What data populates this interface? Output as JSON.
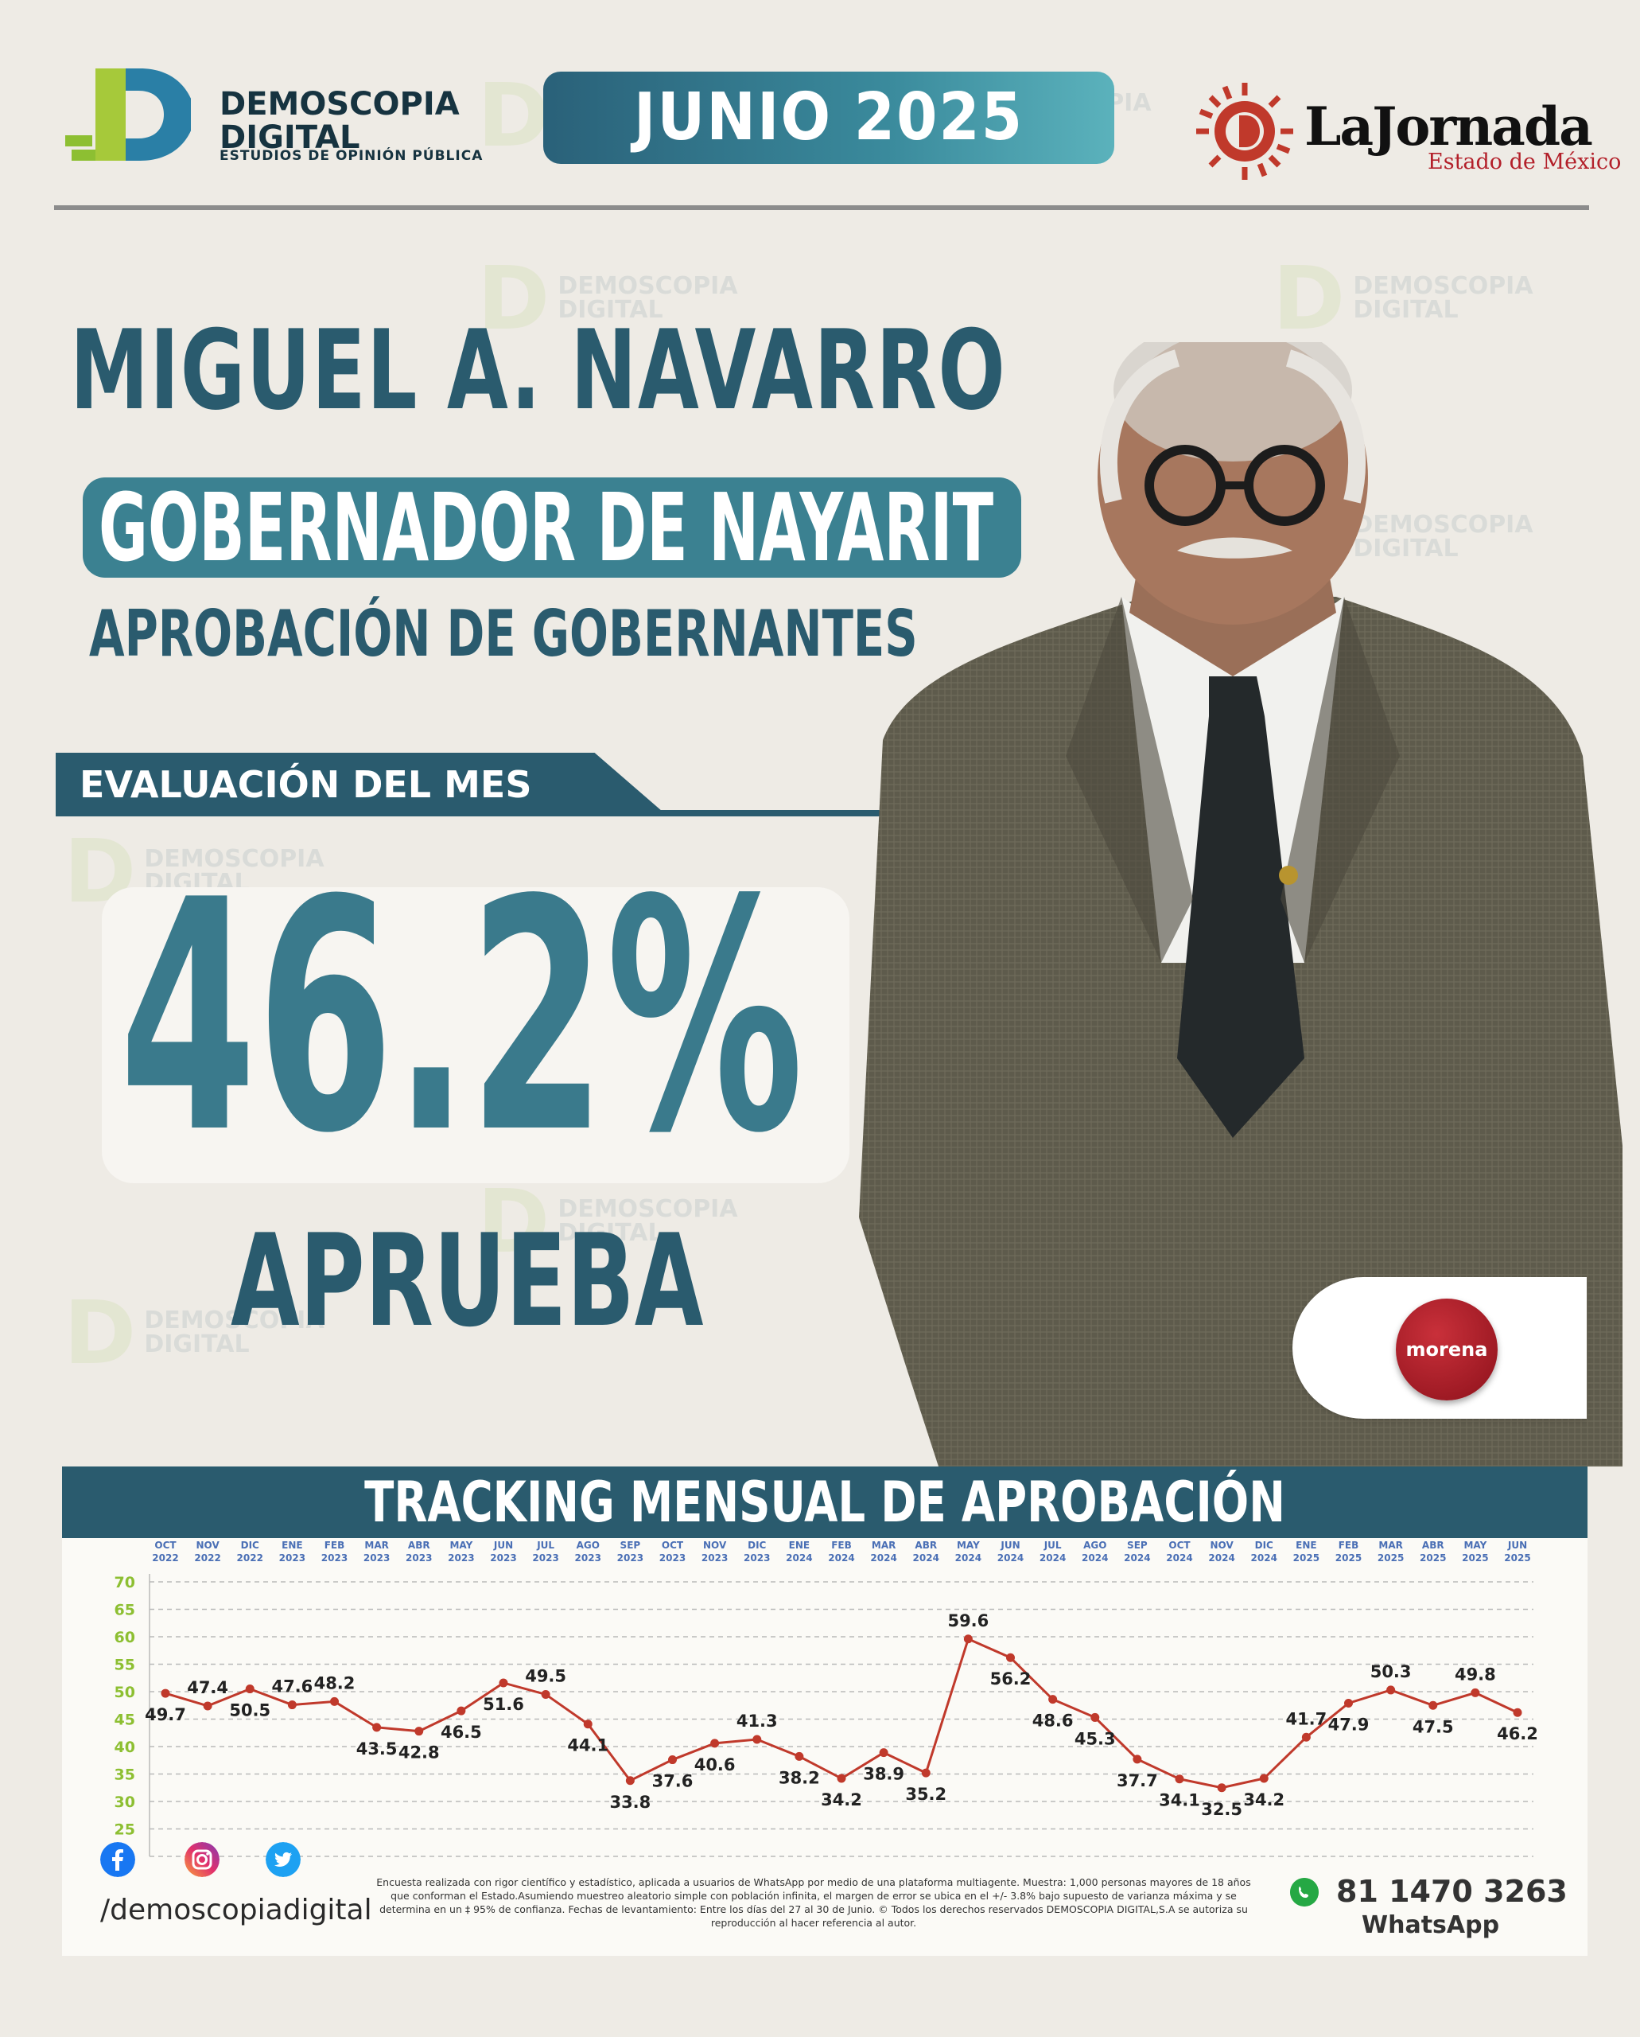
{
  "header": {
    "brand_line1": "DEMOSCOPIA",
    "brand_line2": "DIGITAL",
    "brand_tagline": "ESTUDIOS DE OPINIÓN PÚBLICA",
    "period": "JUNIO 2025",
    "partner_name": "LaJornada",
    "partner_region": "Estado de México"
  },
  "hero": {
    "name": "MIGUEL A. NAVARRO",
    "role": "GOBERNADOR DE NAYARIT",
    "section": "APROBACIÓN DE GOBERNANTES",
    "eval_label": "EVALUACIÓN DEL MES",
    "value": "46.2%",
    "verdict": "APRUEBA",
    "party": "morena"
  },
  "chart_title": "TRACKING MENSUAL DE APROBACIÓN",
  "chart_data": {
    "type": "line",
    "categories": [
      [
        "OCT",
        "2022"
      ],
      [
        "NOV",
        "2022"
      ],
      [
        "DIC",
        "2022"
      ],
      [
        "ENE",
        "2023"
      ],
      [
        "FEB",
        "2023"
      ],
      [
        "MAR",
        "2023"
      ],
      [
        "ABR",
        "2023"
      ],
      [
        "MAY",
        "2023"
      ],
      [
        "JUN",
        "2023"
      ],
      [
        "JUL",
        "2023"
      ],
      [
        "AGO",
        "2023"
      ],
      [
        "SEP",
        "2023"
      ],
      [
        "OCT",
        "2023"
      ],
      [
        "NOV",
        "2023"
      ],
      [
        "DIC",
        "2023"
      ],
      [
        "ENE",
        "2024"
      ],
      [
        "FEB",
        "2024"
      ],
      [
        "MAR",
        "2024"
      ],
      [
        "ABR",
        "2024"
      ],
      [
        "MAY",
        "2024"
      ],
      [
        "JUN",
        "2024"
      ],
      [
        "JUL",
        "2024"
      ],
      [
        "AGO",
        "2024"
      ],
      [
        "SEP",
        "2024"
      ],
      [
        "OCT",
        "2024"
      ],
      [
        "NOV",
        "2024"
      ],
      [
        "DIC",
        "2024"
      ],
      [
        "ENE",
        "2025"
      ],
      [
        "FEB",
        "2025"
      ],
      [
        "MAR",
        "2025"
      ],
      [
        "ABR",
        "2025"
      ],
      [
        "MAY",
        "2025"
      ],
      [
        "JUN",
        "2025"
      ]
    ],
    "values": [
      49.7,
      47.4,
      50.5,
      47.6,
      48.2,
      43.5,
      42.8,
      46.5,
      51.6,
      49.5,
      44.1,
      33.8,
      37.6,
      40.6,
      41.3,
      38.2,
      34.2,
      38.9,
      35.2,
      59.6,
      56.2,
      48.6,
      45.3,
      37.7,
      34.1,
      32.5,
      34.2,
      41.7,
      47.9,
      50.3,
      47.5,
      49.8,
      46.2
    ],
    "label_position": [
      "below",
      "above",
      "below",
      "above",
      "above",
      "below",
      "below",
      "below",
      "below",
      "above",
      "below",
      "below",
      "below",
      "below",
      "above",
      "below",
      "below",
      "below",
      "below",
      "above",
      "below",
      "below",
      "below",
      "below",
      "below",
      "below",
      "below",
      "above",
      "below",
      "above",
      "below",
      "above",
      "below"
    ],
    "yticks": [
      20,
      25,
      30,
      35,
      40,
      45,
      50,
      55,
      60,
      65,
      70
    ],
    "ylim": [
      20,
      70
    ],
    "grid": true,
    "line_color": "#c0392b",
    "tick_color": "#8dbf32",
    "category_color": "#4a6fb5"
  },
  "footer": {
    "handle": "/demoscopiadigital",
    "disclaimer": "Encuesta realizada con rigor científico y estadístico, aplicada a usuarios de WhatsApp por medio de una plataforma multiagente. Muestra: 1,000 personas mayores de 18 años que conforman el Estado.Asumiendo muestreo aleatorio simple con población infinita, el margen de error se ubica en el +/- 3.8% bajo supuesto de varianza máxima y se determina en un ‡ 95% de confianza. Fechas de levantamiento: Entre los días del 27 al 30 de Junio. © Todos los derechos reservados DEMOSCOPIA DIGITAL,S.A se autoriza su reproducción al hacer referencia al autor.",
    "phone": "81 1470 3263",
    "phone_label": "WhatsApp"
  },
  "colors": {
    "primary": "#2a5b6e",
    "accent": "#3b8191",
    "lime": "#8dbf32",
    "party": "#a11c26"
  },
  "icons": [
    "facebook-icon",
    "instagram-icon",
    "twitter-icon",
    "whatsapp-icon"
  ]
}
